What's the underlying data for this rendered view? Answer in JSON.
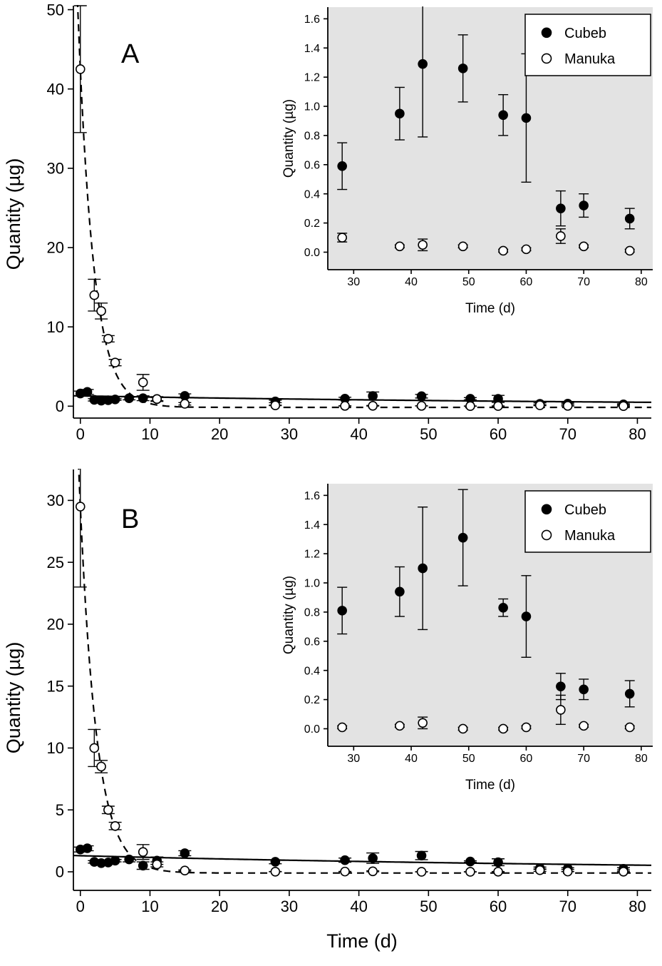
{
  "figure": {
    "x_axis_label": "Time (d)",
    "colors": {
      "foreground": "#000000",
      "inset_background": "#e3e3e3",
      "open_marker_fill": "#ffffff",
      "legend_background": "#ffffff"
    }
  },
  "chart_data": [
    {
      "id": "panel-a-main",
      "type": "scatter",
      "panel_label": "A",
      "ylabel": "Quantity  (µg)",
      "xlabel": "",
      "xlim": [
        -1,
        82
      ],
      "ylim": [
        -1.5,
        50.5
      ],
      "xticks": {
        "values": [
          0,
          10,
          20,
          30,
          40,
          50,
          60,
          70,
          80
        ],
        "labels": [
          "0",
          "10",
          "20",
          "30",
          "40",
          "50",
          "60",
          "70",
          "80"
        ]
      },
      "yticks": {
        "values": [
          0,
          10,
          20,
          30,
          40,
          50
        ],
        "labels": [
          "0",
          "10",
          "20",
          "30",
          "40",
          "50"
        ]
      },
      "series": [
        {
          "name": "Cubeb",
          "marker": "filled",
          "x": [
            0,
            1,
            2,
            3,
            4,
            5,
            7,
            9,
            11,
            15,
            28,
            38,
            42,
            49,
            56,
            60,
            66,
            70,
            78
          ],
          "y": [
            1.6,
            1.8,
            0.8,
            0.7,
            0.75,
            0.85,
            1.0,
            1.0,
            0.9,
            1.3,
            0.6,
            0.95,
            1.29,
            1.26,
            0.94,
            0.92,
            0.3,
            0.32,
            0.23
          ],
          "err": [
            0.3,
            0.3,
            0.15,
            0.1,
            0.1,
            0.1,
            0.2,
            0.3,
            0.2,
            0.25,
            0.16,
            0.18,
            0.5,
            0.23,
            0.14,
            0.44,
            0.12,
            0.08,
            0.07
          ]
        },
        {
          "name": "Manuka",
          "marker": "open",
          "x": [
            0,
            2,
            3,
            4,
            5,
            9,
            11,
            15,
            28,
            38,
            42,
            49,
            56,
            60,
            66,
            70,
            78
          ],
          "y": [
            42.5,
            14,
            12,
            8.5,
            5.5,
            3.0,
            0.9,
            0.3,
            0.1,
            0.04,
            0.05,
            0.04,
            0.01,
            0.02,
            0.11,
            0.04,
            0.01
          ],
          "err": [
            8,
            2,
            1,
            0.4,
            0.4,
            1.0,
            0.3,
            0.15,
            0.03,
            0.01,
            0.04,
            0.01,
            0.01,
            0.01,
            0.05,
            0.01,
            0.01
          ]
        }
      ],
      "fits": [
        {
          "series": "Manuka",
          "style": "dashed",
          "model": "exponential",
          "a": 42.5,
          "k": 0.45,
          "c": -0.15
        },
        {
          "series": "Cubeb",
          "style": "solid",
          "model": "exponential",
          "a": 1.3,
          "k": 0.012,
          "c": 0
        }
      ],
      "legend": null
    },
    {
      "id": "panel-a-inset",
      "type": "scatter",
      "panel_label": "",
      "ylabel": "Quantity  (µg)",
      "xlabel": "Time (d)",
      "xlim": [
        25.5,
        82
      ],
      "ylim": [
        -0.12,
        1.68
      ],
      "xticks": {
        "values": [
          30,
          40,
          50,
          60,
          70,
          80
        ],
        "labels": [
          "30",
          "40",
          "50",
          "60",
          "70",
          "80"
        ]
      },
      "yticks": {
        "values": [
          0,
          0.2,
          0.4,
          0.6,
          0.8,
          1.0,
          1.2,
          1.4,
          1.6
        ],
        "labels": [
          "0.0",
          "0.2",
          "0.4",
          "0.6",
          "0.8",
          "1.0",
          "1.2",
          "1.4",
          "1.6"
        ]
      },
      "series": [
        {
          "name": "Cubeb",
          "marker": "filled",
          "x": [
            28,
            38,
            42,
            49,
            56,
            60,
            66,
            70,
            78
          ],
          "y": [
            0.59,
            0.95,
            1.29,
            1.26,
            0.94,
            0.92,
            0.3,
            0.32,
            0.23
          ],
          "err": [
            0.16,
            0.18,
            0.5,
            0.23,
            0.14,
            0.44,
            0.12,
            0.08,
            0.07
          ]
        },
        {
          "name": "Manuka",
          "marker": "open",
          "x": [
            28,
            38,
            42,
            49,
            56,
            60,
            66,
            70,
            78
          ],
          "y": [
            0.1,
            0.04,
            0.05,
            0.04,
            0.01,
            0.02,
            0.11,
            0.04,
            0.01
          ],
          "err": [
            0.03,
            0.01,
            0.04,
            0.01,
            0.01,
            0.01,
            0.05,
            0.01,
            0.01
          ]
        }
      ],
      "fits": [],
      "legend": {
        "position": "top-right",
        "entries": [
          "Cubeb",
          "Manuka"
        ]
      }
    },
    {
      "id": "panel-b-main",
      "type": "scatter",
      "panel_label": "B",
      "ylabel": "Quantity  (µg)",
      "xlabel": "",
      "xlim": [
        -1,
        82
      ],
      "ylim": [
        -1.5,
        32.5
      ],
      "xticks": {
        "values": [
          0,
          10,
          20,
          30,
          40,
          50,
          60,
          70,
          80
        ],
        "labels": [
          "0",
          "10",
          "20",
          "30",
          "40",
          "50",
          "60",
          "70",
          "80"
        ]
      },
      "yticks": {
        "values": [
          0,
          5,
          10,
          15,
          20,
          25,
          30
        ],
        "labels": [
          "0",
          "5",
          "10",
          "15",
          "20",
          "25",
          "30"
        ]
      },
      "series": [
        {
          "name": "Cubeb",
          "marker": "filled",
          "x": [
            0,
            1,
            2,
            3,
            4,
            5,
            7,
            9,
            11,
            15,
            28,
            38,
            42,
            49,
            56,
            60,
            66,
            70,
            78
          ],
          "y": [
            1.8,
            1.9,
            0.8,
            0.7,
            0.75,
            0.9,
            1.0,
            0.5,
            0.9,
            1.5,
            0.81,
            0.94,
            1.1,
            1.31,
            0.83,
            0.77,
            0.29,
            0.27,
            0.24
          ],
          "err": [
            0.2,
            0.2,
            0.1,
            0.1,
            0.1,
            0.1,
            0.2,
            0.3,
            0.3,
            0.2,
            0.16,
            0.17,
            0.42,
            0.33,
            0.06,
            0.28,
            0.09,
            0.07,
            0.09
          ]
        },
        {
          "name": "Manuka",
          "marker": "open",
          "x": [
            0,
            2,
            3,
            4,
            5,
            9,
            11,
            15,
            28,
            38,
            42,
            49,
            56,
            60,
            66,
            70,
            78
          ],
          "y": [
            29.5,
            10,
            8.5,
            5.0,
            3.7,
            1.6,
            0.6,
            0.1,
            0.01,
            0.02,
            0.04,
            0.0,
            0.0,
            0.01,
            0.13,
            0.02,
            0.01
          ],
          "err": [
            6.5,
            1.5,
            0.5,
            0.3,
            0.3,
            0.6,
            0.2,
            0.05,
            0.01,
            0.01,
            0.04,
            0.01,
            0.01,
            0.01,
            0.1,
            0.01,
            0.01
          ]
        }
      ],
      "fits": [
        {
          "series": "Manuka",
          "style": "dashed",
          "model": "exponential",
          "a": 29.5,
          "k": 0.42,
          "c": -0.1
        },
        {
          "series": "Cubeb",
          "style": "solid",
          "model": "exponential",
          "a": 1.3,
          "k": 0.011,
          "c": 0
        }
      ],
      "legend": null
    },
    {
      "id": "panel-b-inset",
      "type": "scatter",
      "panel_label": "",
      "ylabel": "Quantity  (µg)",
      "xlabel": "Time (d)",
      "xlim": [
        25.5,
        82
      ],
      "ylim": [
        -0.12,
        1.68
      ],
      "xticks": {
        "values": [
          30,
          40,
          50,
          60,
          70,
          80
        ],
        "labels": [
          "30",
          "40",
          "50",
          "60",
          "70",
          "80"
        ]
      },
      "yticks": {
        "values": [
          0,
          0.2,
          0.4,
          0.6,
          0.8,
          1.0,
          1.2,
          1.4,
          1.6
        ],
        "labels": [
          "0.0",
          "0.2",
          "0.4",
          "0.6",
          "0.8",
          "1.0",
          "1.2",
          "1.4",
          "1.6"
        ]
      },
      "series": [
        {
          "name": "Cubeb",
          "marker": "filled",
          "x": [
            28,
            38,
            42,
            49,
            56,
            60,
            66,
            70,
            78
          ],
          "y": [
            0.81,
            0.94,
            1.1,
            1.31,
            0.83,
            0.77,
            0.29,
            0.27,
            0.24
          ],
          "err": [
            0.16,
            0.17,
            0.42,
            0.33,
            0.06,
            0.28,
            0.09,
            0.07,
            0.09
          ]
        },
        {
          "name": "Manuka",
          "marker": "open",
          "x": [
            28,
            38,
            42,
            49,
            56,
            60,
            66,
            70,
            78
          ],
          "y": [
            0.01,
            0.02,
            0.04,
            0.0,
            0.0,
            0.01,
            0.13,
            0.02,
            0.01
          ],
          "err": [
            0.01,
            0.01,
            0.04,
            0.01,
            0.01,
            0.01,
            0.1,
            0.01,
            0.01
          ]
        }
      ],
      "fits": [],
      "legend": {
        "position": "top-right",
        "entries": [
          "Cubeb",
          "Manuka"
        ]
      }
    }
  ]
}
